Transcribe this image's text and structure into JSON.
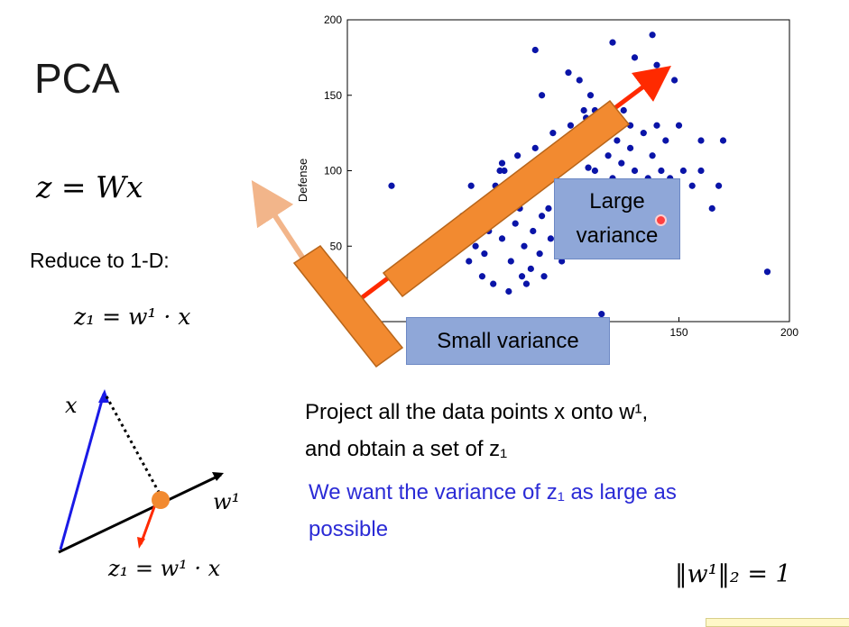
{
  "slide": {
    "title": "PCA",
    "eq_main": "z = Wx",
    "reduce_text": "Reduce to 1-D:",
    "eq_z1": "z₁ = w¹ · x",
    "diagram_x_label": "x",
    "diagram_w_label": "w¹",
    "eq_projection": "z₁ = w¹ · x",
    "project_line1": "Project all the data points x onto w¹,",
    "project_line2": "and obtain a set of z₁",
    "want_line1": "We want the variance of z₁ as large as",
    "want_line2": "possible",
    "norm": "‖w¹‖₂ = 1",
    "large_variance_line1": "Large",
    "large_variance_line2": "variance",
    "small_variance": "Small variance",
    "colors": {
      "blue_text": "#2b2bd6",
      "dots": "#0a14a8",
      "bar": "#f28a30",
      "red_arrow": "#ff2a00",
      "box": "#8fa7d8"
    }
  },
  "chart_data": {
    "type": "scatter",
    "title": "",
    "xlabel": "",
    "ylabel": "Defense",
    "xlim": [
      0,
      200
    ],
    "ylim": [
      0,
      200
    ],
    "x_ticks": [
      150,
      200
    ],
    "y_ticks": [
      50,
      100,
      150,
      200
    ],
    "grid": false,
    "series": [
      {
        "points": [
          [
            20,
            90
          ],
          [
            45,
            55
          ],
          [
            70,
            105
          ],
          [
            85,
            180
          ],
          [
            88,
            150
          ],
          [
            100,
            165
          ],
          [
            105,
            160
          ],
          [
            108,
            135
          ],
          [
            110,
            150
          ],
          [
            120,
            185
          ],
          [
            130,
            175
          ],
          [
            135,
            160
          ],
          [
            138,
            190
          ],
          [
            140,
            170
          ],
          [
            150,
            130
          ],
          [
            148,
            160
          ],
          [
            160,
            120
          ],
          [
            165,
            75
          ],
          [
            168,
            90
          ],
          [
            170,
            120
          ],
          [
            190,
            33
          ],
          [
            115,
            5
          ],
          [
            128,
            130
          ],
          [
            140,
            130
          ],
          [
            112,
            140
          ],
          [
            60,
            60
          ],
          [
            62,
            45
          ],
          [
            65,
            80
          ],
          [
            68,
            70
          ],
          [
            70,
            55
          ],
          [
            72,
            90
          ],
          [
            74,
            40
          ],
          [
            76,
            65
          ],
          [
            78,
            75
          ],
          [
            80,
            50
          ],
          [
            82,
            85
          ],
          [
            84,
            60
          ],
          [
            86,
            100
          ],
          [
            88,
            70
          ],
          [
            90,
            95
          ],
          [
            92,
            55
          ],
          [
            94,
            110
          ],
          [
            96,
            80
          ],
          [
            98,
            120
          ],
          [
            100,
            65
          ],
          [
            102,
            105
          ],
          [
            104,
            90
          ],
          [
            106,
            125
          ],
          [
            108,
            75
          ],
          [
            110,
            115
          ],
          [
            112,
            100
          ],
          [
            114,
            130
          ],
          [
            116,
            85
          ],
          [
            118,
            110
          ],
          [
            120,
            95
          ],
          [
            122,
            120
          ],
          [
            124,
            105
          ],
          [
            126,
            90
          ],
          [
            128,
            115
          ],
          [
            130,
            100
          ],
          [
            132,
            80
          ],
          [
            134,
            125
          ],
          [
            136,
            95
          ],
          [
            138,
            110
          ],
          [
            140,
            85
          ],
          [
            142,
            100
          ],
          [
            144,
            120
          ],
          [
            146,
            95
          ],
          [
            125,
            140
          ],
          [
            118,
            135
          ],
          [
            115,
            120
          ],
          [
            109,
            102
          ],
          [
            103,
            85
          ],
          [
            99,
            70
          ],
          [
            95,
            60
          ],
          [
            91,
            75
          ],
          [
            87,
            45
          ],
          [
            83,
            35
          ],
          [
            79,
            30
          ],
          [
            75,
            95
          ],
          [
            71,
            100
          ],
          [
            67,
            90
          ],
          [
            63,
            75
          ],
          [
            61,
            30
          ],
          [
            66,
            25
          ],
          [
            73,
            20
          ],
          [
            81,
            25
          ],
          [
            89,
            30
          ],
          [
            97,
            40
          ],
          [
            105,
            50
          ],
          [
            113,
            60
          ],
          [
            121,
            70
          ],
          [
            129,
            55
          ],
          [
            137,
            65
          ],
          [
            145,
            75
          ],
          [
            152,
            100
          ],
          [
            156,
            90
          ],
          [
            160,
            100
          ],
          [
            107,
            140
          ],
          [
            101,
            130
          ],
          [
            93,
            125
          ],
          [
            85,
            115
          ],
          [
            77,
            110
          ],
          [
            69,
            100
          ],
          [
            64,
            60
          ],
          [
            58,
            50
          ],
          [
            55,
            40
          ],
          [
            52,
            70
          ],
          [
            50,
            60
          ],
          [
            56,
            90
          ]
        ]
      }
    ]
  }
}
